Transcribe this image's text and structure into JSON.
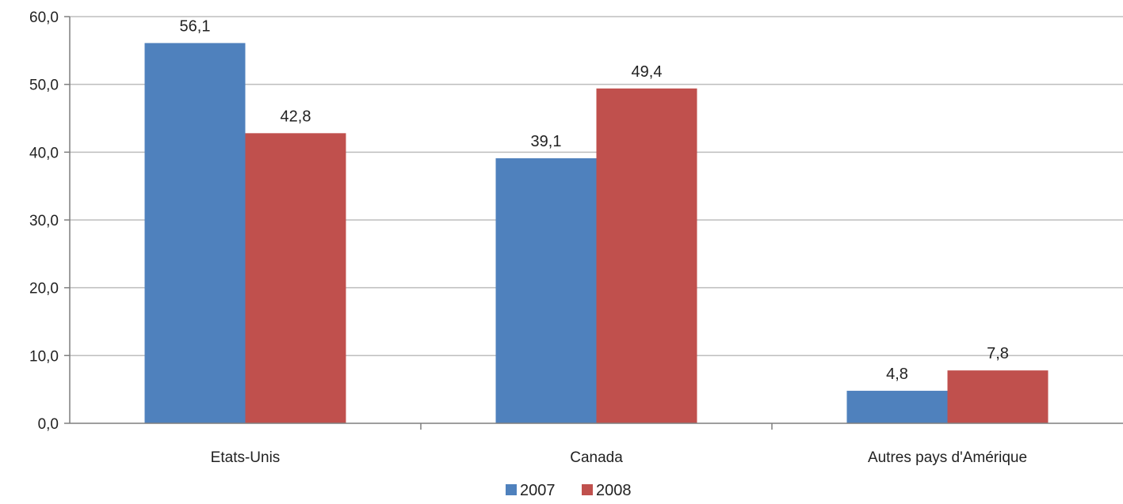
{
  "chart_data": {
    "type": "bar",
    "title": "",
    "xlabel": "",
    "ylabel": "",
    "categories": [
      "Etats-Unis",
      "Canada",
      "Autres pays d'Amérique"
    ],
    "series": [
      {
        "name": "2007",
        "values": [
          56.1,
          39.1,
          4.8
        ],
        "labels": [
          "56,1",
          "39,1",
          "4,8"
        ],
        "color": "#4f81bd"
      },
      {
        "name": "2008",
        "values": [
          42.8,
          49.4,
          7.8
        ],
        "labels": [
          "42,8",
          "49,4",
          "7,8"
        ],
        "color": "#c0504d"
      }
    ],
    "ylim": [
      0,
      60
    ],
    "yticks": [
      0,
      10,
      20,
      30,
      40,
      50,
      60
    ],
    "ytick_labels": [
      "0,0",
      "10,0",
      "20,0",
      "30,0",
      "40,0",
      "50,0",
      "60,0"
    ],
    "grid": true,
    "legend": "bottom"
  }
}
